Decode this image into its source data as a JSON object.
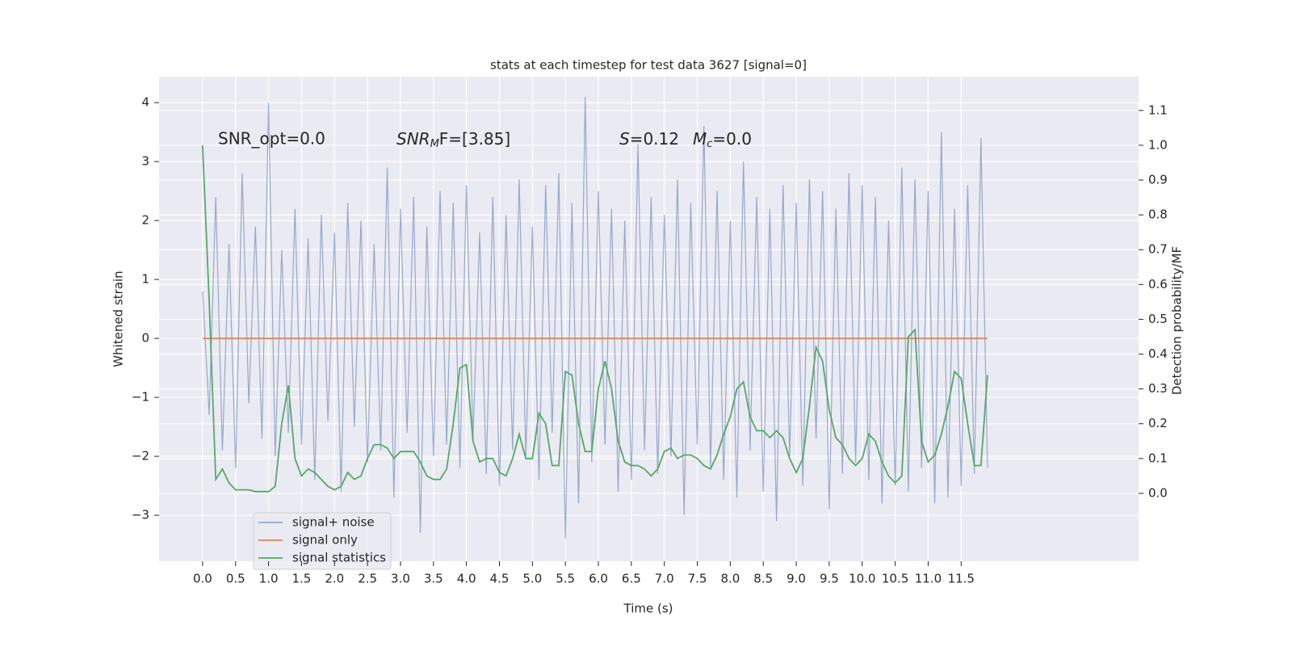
{
  "chart_data": {
    "type": "line",
    "title": "stats at each timestep for test data 3627 [signal=0]",
    "x_label": "Time (s)",
    "y_label": "Whitened strain",
    "y2_label": "Detection probability/MF",
    "annotations": [
      [
        "SNR_opt=0.0"
      ],
      [
        "SNR",
        "M",
        "F=[3.85]"
      ],
      [
        "S",
        "=0.12"
      ],
      [
        "M",
        "c",
        "=0.0"
      ]
    ],
    "grid": true,
    "legend": "lower left",
    "xlim": [
      -0.66,
      14.19
    ],
    "ylim": [
      -3.78,
      4.44
    ],
    "y2lim": [
      -0.195,
      1.197
    ],
    "xticks": [
      {
        "value": 0,
        "label": "0.0"
      },
      0.5,
      {
        "value": 1,
        "label": "1.0"
      },
      1.5,
      {
        "value": 2,
        "label": "2.0"
      },
      2.5,
      {
        "value": 3,
        "label": "3.0"
      },
      3.5,
      {
        "value": 4,
        "label": "4.0"
      },
      4.5,
      {
        "value": 5,
        "label": "5.0"
      },
      5.5,
      {
        "value": 6,
        "label": "6.0"
      },
      6.5,
      {
        "value": 7,
        "label": "7.0"
      },
      7.5,
      {
        "value": 8,
        "label": "8.0"
      },
      8.5,
      {
        "value": 9,
        "label": "9.0"
      },
      9.5,
      {
        "value": 10,
        "label": "10.0"
      },
      10.5,
      {
        "value": 11,
        "label": "11.0"
      },
      11.5
    ],
    "yticks": [
      {
        "value": -3,
        "label": "−3"
      },
      {
        "value": -2,
        "label": "−2"
      },
      {
        "value": -1,
        "label": "−1"
      },
      0,
      1,
      2,
      3,
      4
    ],
    "y2ticks": [
      {
        "value": 0,
        "label": "0.0"
      },
      0.1,
      0.2,
      0.3,
      0.4,
      0.5,
      0.6,
      0.7,
      0.8,
      0.9,
      {
        "value": 1,
        "label": "1.0"
      },
      1.1
    ],
    "x": [
      0,
      0.1,
      0.2,
      0.3,
      0.4,
      0.5,
      0.6,
      0.7,
      0.8,
      0.9,
      1,
      1.1,
      1.2,
      1.3,
      1.4,
      1.5,
      1.6,
      1.7,
      1.8,
      1.9,
      2,
      2.1,
      2.2,
      2.3,
      2.4,
      2.5,
      2.6,
      2.7,
      2.8,
      2.9,
      3,
      3.1,
      3.2,
      3.3,
      3.4,
      3.5,
      3.6,
      3.7,
      3.8,
      3.9,
      4,
      4.1,
      4.2,
      4.3,
      4.4,
      4.5,
      4.6,
      4.7,
      4.8,
      4.9,
      5,
      5.1,
      5.2,
      5.3,
      5.4,
      5.5,
      5.6,
      5.7,
      5.8,
      5.9,
      6,
      6.1,
      6.2,
      6.3,
      6.4,
      6.5,
      6.6,
      6.7,
      6.8,
      6.9,
      7,
      7.1,
      7.2,
      7.3,
      7.4,
      7.5,
      7.6,
      7.7,
      7.8,
      7.9,
      8,
      8.1,
      8.2,
      8.3,
      8.4,
      8.5,
      8.6,
      8.7,
      8.8,
      8.9,
      9,
      9.1,
      9.2,
      9.3,
      9.4,
      9.5,
      9.6,
      9.7,
      9.8,
      9.9,
      10,
      10.1,
      10.2,
      10.3,
      10.4,
      10.5,
      10.6,
      10.7,
      10.8,
      10.9,
      11,
      11.1,
      11.2,
      11.3,
      11.4,
      11.5,
      11.6,
      11.7,
      11.8,
      11.9
    ],
    "series": [
      {
        "name": "signal+ noise",
        "color": "#4c72b0",
        "values": [
          0.8,
          -1.3,
          2.4,
          -1.9,
          1.6,
          -2.2,
          2.8,
          -1.1,
          1.9,
          -1.7,
          4.0,
          -2.0,
          1.5,
          -1.6,
          2.2,
          -1.8,
          1.7,
          -2.4,
          2.1,
          -1.4,
          1.8,
          -2.6,
          2.3,
          -1.5,
          2.0,
          -2.1,
          1.6,
          -1.9,
          2.9,
          -2.7,
          2.2,
          -1.6,
          2.4,
          -3.3,
          1.9,
          -2.0,
          2.5,
          -1.8,
          2.3,
          -2.2,
          2.6,
          -1.7,
          1.8,
          -2.3,
          2.4,
          -2.5,
          2.1,
          -1.9,
          2.7,
          -2.0,
          1.9,
          -2.4,
          2.6,
          -1.6,
          2.8,
          -3.4,
          2.3,
          -2.8,
          4.1,
          -2.1,
          2.5,
          -1.8,
          2.2,
          -2.6,
          2.0,
          -2.4,
          3.3,
          -1.9,
          2.4,
          -2.3,
          2.1,
          -2.0,
          2.7,
          -3.0,
          2.3,
          -1.8,
          3.6,
          -2.2,
          2.5,
          -2.4,
          2.0,
          -2.7,
          3.0,
          -1.9,
          2.4,
          -2.6,
          2.2,
          -3.1,
          2.6,
          -2.0,
          2.3,
          -2.5,
          2.7,
          -1.7,
          2.5,
          -2.9,
          2.2,
          -2.3,
          2.8,
          -2.1,
          2.6,
          -2.4,
          2.4,
          -2.8,
          2.0,
          -2.5,
          2.9,
          -2.6,
          2.7,
          -2.2,
          2.5,
          -2.8,
          3.5,
          -2.7,
          2.2,
          -2.5,
          2.6,
          -2.3,
          3.4,
          -2.2
        ]
      },
      {
        "name": "signal only",
        "color": "#dd8452",
        "values": [
          0,
          0,
          0,
          0,
          0,
          0,
          0,
          0,
          0,
          0,
          0,
          0,
          0,
          0,
          0,
          0,
          0,
          0,
          0,
          0,
          0,
          0,
          0,
          0,
          0,
          0,
          0,
          0,
          0,
          0,
          0,
          0,
          0,
          0,
          0,
          0,
          0,
          0,
          0,
          0,
          0,
          0,
          0,
          0,
          0,
          0,
          0,
          0,
          0,
          0,
          0,
          0,
          0,
          0,
          0,
          0,
          0,
          0,
          0,
          0,
          0,
          0,
          0,
          0,
          0,
          0,
          0,
          0,
          0,
          0,
          0,
          0,
          0,
          0,
          0,
          0,
          0,
          0,
          0,
          0,
          0,
          0,
          0,
          0,
          0,
          0,
          0,
          0,
          0,
          0,
          0,
          0,
          0,
          0,
          0,
          0,
          0,
          0,
          0,
          0,
          0,
          0,
          0,
          0,
          0,
          0,
          0,
          0,
          0,
          0,
          0,
          0,
          0,
          0,
          0,
          0,
          0,
          0,
          0,
          0
        ]
      },
      {
        "name": "signal statistics",
        "color": "#55a868",
        "axis": "y2",
        "values": [
          1.0,
          0.55,
          0.04,
          0.07,
          0.03,
          0.01,
          0.01,
          0.01,
          0.005,
          0.005,
          0.005,
          0.02,
          0.2,
          0.31,
          0.1,
          0.05,
          0.07,
          0.06,
          0.04,
          0.02,
          0.01,
          0.02,
          0.06,
          0.04,
          0.05,
          0.1,
          0.14,
          0.14,
          0.13,
          0.1,
          0.12,
          0.12,
          0.12,
          0.09,
          0.05,
          0.04,
          0.04,
          0.07,
          0.2,
          0.36,
          0.37,
          0.15,
          0.09,
          0.1,
          0.1,
          0.06,
          0.05,
          0.1,
          0.17,
          0.1,
          0.1,
          0.23,
          0.2,
          0.08,
          0.08,
          0.35,
          0.34,
          0.2,
          0.12,
          0.12,
          0.3,
          0.38,
          0.3,
          0.15,
          0.09,
          0.08,
          0.08,
          0.07,
          0.05,
          0.07,
          0.12,
          0.13,
          0.1,
          0.11,
          0.11,
          0.1,
          0.08,
          0.07,
          0.11,
          0.17,
          0.22,
          0.3,
          0.32,
          0.22,
          0.18,
          0.18,
          0.16,
          0.18,
          0.16,
          0.1,
          0.06,
          0.1,
          0.25,
          0.42,
          0.38,
          0.24,
          0.16,
          0.14,
          0.1,
          0.08,
          0.1,
          0.17,
          0.15,
          0.09,
          0.05,
          0.03,
          0.05,
          0.45,
          0.47,
          0.15,
          0.09,
          0.11,
          0.17,
          0.25,
          0.35,
          0.33,
          0.2,
          0.08,
          0.08,
          0.34
        ]
      }
    ]
  }
}
